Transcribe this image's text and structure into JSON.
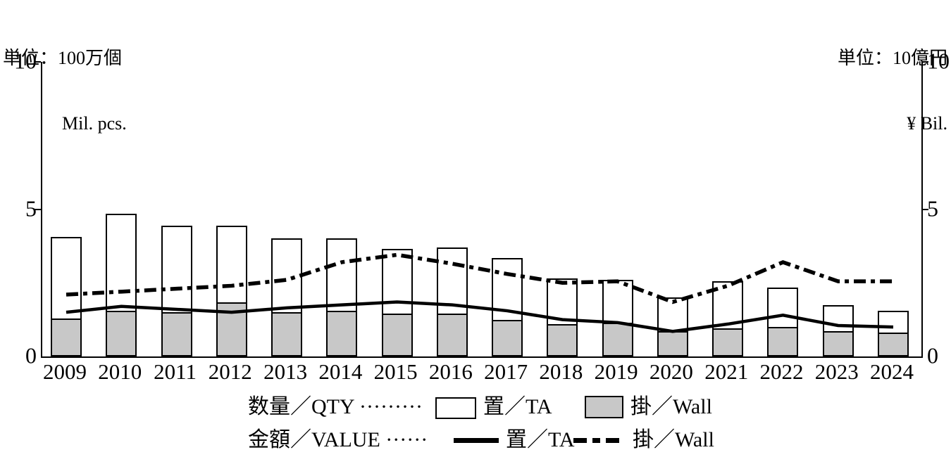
{
  "units": {
    "left_line1": "単位：100万個",
    "left_line2": "Mil. pcs.",
    "right_line1": "単位：10億円",
    "right_line2": "¥ Bil."
  },
  "axes": {
    "left_ticks": [
      "10",
      "5",
      "0"
    ],
    "right_ticks": [
      "10",
      "5",
      "0"
    ],
    "y_min": 0,
    "y_max": 10
  },
  "legend": {
    "qty_label": "数量／QTY ·········",
    "qty_ta": "置／TA",
    "qty_wall": "掛／Wall",
    "value_label": "金額／VALUE ······",
    "value_ta": "置／TA",
    "value_wall": "掛／Wall"
  },
  "colors": {
    "wall_bar_fill": "#c8c8c8",
    "ta_bar_fill": "#ffffff",
    "line_color": "#000000",
    "background": "#ffffff"
  },
  "chart_data": {
    "type": "bar",
    "subtype": "stacked-bars-with-line-overlay",
    "categories": [
      "2009",
      "2010",
      "2011",
      "2012",
      "2013",
      "2014",
      "2015",
      "2016",
      "2017",
      "2018",
      "2019",
      "2020",
      "2021",
      "2022",
      "2023",
      "2024"
    ],
    "bar_unit": "100万個 / Mil. pcs.",
    "line_unit": "10億円 / ¥ Bil.",
    "ylim_left": [
      0,
      10
    ],
    "ylim_right": [
      0,
      10
    ],
    "grid": false,
    "legend_position": "bottom",
    "series": [
      {
        "name": "数量 置／TA",
        "type": "bar",
        "stack": "qty",
        "position": "top",
        "fill": "#ffffff",
        "values": [
          2.75,
          3.3,
          2.95,
          2.6,
          2.5,
          2.45,
          2.2,
          2.25,
          2.1,
          1.55,
          1.45,
          1.15,
          1.6,
          1.35,
          0.9,
          0.75
        ]
      },
      {
        "name": "数量 掛／Wall",
        "type": "bar",
        "stack": "qty",
        "position": "bottom",
        "fill": "#c8c8c8",
        "values": [
          1.3,
          1.55,
          1.5,
          1.85,
          1.5,
          1.55,
          1.45,
          1.45,
          1.25,
          1.1,
          1.15,
          0.85,
          0.95,
          1.0,
          0.85,
          0.8
        ]
      },
      {
        "name": "金額 置／TA",
        "type": "line",
        "style": "solid",
        "values": [
          1.5,
          1.7,
          1.6,
          1.5,
          1.65,
          1.75,
          1.85,
          1.75,
          1.55,
          1.25,
          1.15,
          0.85,
          1.1,
          1.4,
          1.05,
          1.0
        ]
      },
      {
        "name": "金額 掛／Wall",
        "type": "line",
        "style": "dashed",
        "values": [
          2.1,
          2.2,
          2.3,
          2.4,
          2.6,
          3.2,
          3.45,
          3.15,
          2.8,
          2.5,
          2.55,
          1.85,
          2.4,
          3.2,
          2.55,
          2.55
        ]
      }
    ],
    "stacked_totals_qty": [
      4.05,
      4.85,
      4.45,
      4.45,
      4.0,
      4.0,
      3.65,
      3.7,
      3.35,
      2.65,
      2.6,
      2.0,
      2.55,
      2.35,
      1.75,
      1.55
    ]
  }
}
